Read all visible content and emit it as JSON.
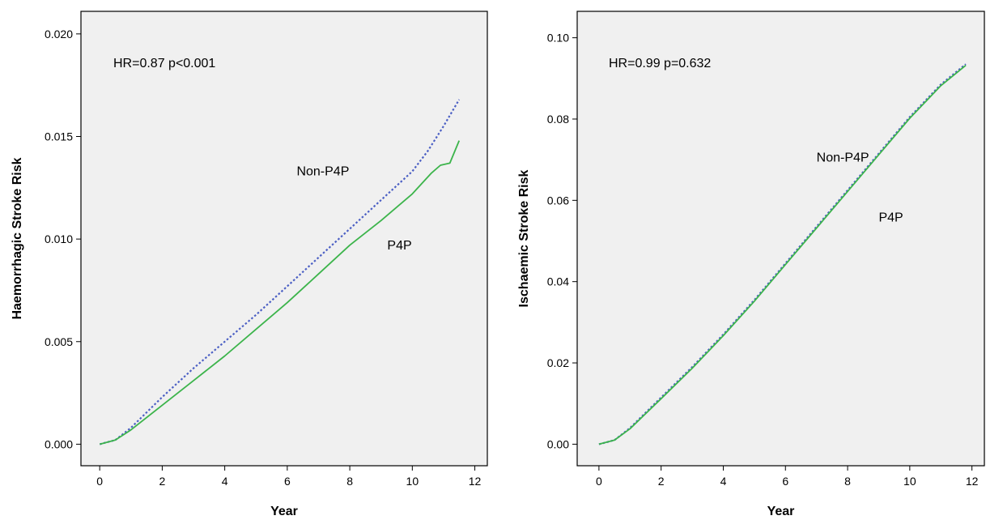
{
  "chart_data": [
    {
      "type": "line",
      "xlabel": "Year",
      "ylabel": "Haemorrhagic Stroke Risk",
      "xlim": [
        -0.6,
        12.4
      ],
      "ylim": [
        -0.00105,
        0.0211
      ],
      "xticks": [
        0,
        2,
        4,
        6,
        8,
        10,
        12
      ],
      "xtick_labels": [
        "0",
        "2",
        "4",
        "6",
        "8",
        "10",
        "12"
      ],
      "yticks": [
        0,
        0.005,
        0.01,
        0.015,
        0.02
      ],
      "ytick_labels": [
        "0.000",
        "0.005",
        "0.010",
        "0.015",
        "0.020"
      ],
      "grid": false,
      "annotation": "HR=0.87   p<0.001",
      "series": [
        {
          "name": "Non-P4P",
          "color": "#4b5fc4",
          "style": "dotted",
          "x": [
            0,
            0.5,
            1,
            2,
            3,
            4,
            5,
            6,
            7,
            8,
            9,
            10,
            10.5,
            11,
            11.5
          ],
          "y": [
            0,
            0.0002,
            0.0008,
            0.0023,
            0.0037,
            0.005,
            0.0063,
            0.0077,
            0.0091,
            0.0105,
            0.0119,
            0.0133,
            0.0143,
            0.0155,
            0.0168
          ]
        },
        {
          "name": "P4P",
          "color": "#3cb44b",
          "style": "solid",
          "x": [
            0,
            0.5,
            1,
            2,
            3,
            4,
            5,
            6,
            7,
            8,
            9,
            10,
            10.6,
            10.9,
            11.2,
            11.5
          ],
          "y": [
            0,
            0.0002,
            0.0007,
            0.0019,
            0.0031,
            0.0043,
            0.0056,
            0.0069,
            0.0083,
            0.0097,
            0.0109,
            0.0122,
            0.0132,
            0.0136,
            0.0137,
            0.0148
          ]
        }
      ],
      "labels": [
        {
          "text": "Non-P4P",
          "x": 6.3,
          "y": 0.0131
        },
        {
          "text": "P4P",
          "x": 9.2,
          "y": 0.0095
        }
      ]
    },
    {
      "type": "line",
      "xlabel": "Year",
      "ylabel": "Ischaemic Stroke Risk",
      "xlim": [
        -0.7,
        12.4
      ],
      "ylim": [
        -0.0053,
        0.1065
      ],
      "xticks": [
        0,
        2,
        4,
        6,
        8,
        10,
        12
      ],
      "xtick_labels": [
        "0",
        "2",
        "4",
        "6",
        "8",
        "10",
        "12"
      ],
      "yticks": [
        0,
        0.02,
        0.04,
        0.06,
        0.08,
        0.1
      ],
      "ytick_labels": [
        "0.00",
        "0.02",
        "0.04",
        "0.06",
        "0.08",
        "0.10"
      ],
      "grid": false,
      "annotation": "HR=0.99   p=0.632",
      "series": [
        {
          "name": "Non-P4P",
          "color": "#4b5fc4",
          "style": "dotted",
          "x": [
            0,
            0.5,
            1,
            2,
            3,
            4,
            5,
            6,
            7,
            8,
            9,
            10,
            11,
            11.8
          ],
          "y": [
            0,
            0.001,
            0.004,
            0.0115,
            0.019,
            0.027,
            0.0355,
            0.0445,
            0.0535,
            0.0625,
            0.0715,
            0.0805,
            0.0885,
            0.0935
          ]
        },
        {
          "name": "P4P",
          "color": "#3cb44b",
          "style": "solid",
          "x": [
            0,
            0.5,
            1,
            2,
            3,
            4,
            5,
            6,
            7,
            8,
            9,
            10,
            11,
            11.8
          ],
          "y": [
            0,
            0.001,
            0.0038,
            0.0112,
            0.0187,
            0.0267,
            0.0352,
            0.0442,
            0.0532,
            0.0622,
            0.0712,
            0.0802,
            0.0882,
            0.0932
          ]
        }
      ],
      "labels": [
        {
          "text": "Non-P4P",
          "x": 7.0,
          "y": 0.0695
        },
        {
          "text": "P4P",
          "x": 9.0,
          "y": 0.0548
        }
      ]
    }
  ]
}
